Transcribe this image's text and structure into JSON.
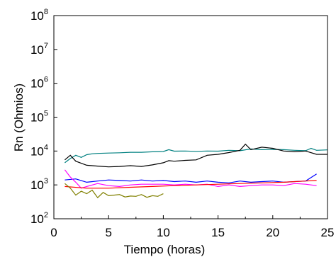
{
  "chart_data": {
    "type": "line",
    "title": "",
    "xlabel": "Tiempo (horas)",
    "ylabel": "Rn (Ohmios)",
    "xlim": [
      0,
      25
    ],
    "ylim": [
      100,
      100000000
    ],
    "yscale": "log",
    "grid": false,
    "x_ticks": [
      {
        "value": 0,
        "label": "0"
      },
      {
        "value": 5,
        "label": "5"
      },
      {
        "value": 10,
        "label": "10"
      },
      {
        "value": 15,
        "label": "15"
      },
      {
        "value": 20,
        "label": "20"
      },
      {
        "value": 25,
        "label": "25"
      }
    ],
    "y_ticks": [
      {
        "value": 100,
        "base": "10",
        "exp": "2"
      },
      {
        "value": 1000,
        "base": "10",
        "exp": "3"
      },
      {
        "value": 10000,
        "base": "10",
        "exp": "4"
      },
      {
        "value": 100000,
        "base": "10",
        "exp": "5"
      },
      {
        "value": 1000000,
        "base": "10",
        "exp": "6"
      },
      {
        "value": 10000000,
        "base": "10",
        "exp": "7"
      },
      {
        "value": 100000000,
        "base": "10",
        "exp": "8"
      }
    ],
    "series": [
      {
        "color": "#008080",
        "x": [
          1,
          1.5,
          2,
          2.5,
          3,
          3.5,
          4,
          5,
          6,
          7,
          8,
          9,
          10,
          10.5,
          11,
          12,
          13,
          14,
          15,
          16,
          17,
          18,
          19,
          20,
          21,
          22,
          23,
          23.5,
          24,
          25
        ],
        "y": [
          4500,
          6000,
          7500,
          6500,
          7800,
          8300,
          8500,
          8700,
          8900,
          9200,
          9200,
          9500,
          9700,
          11000,
          9900,
          10000,
          9800,
          10000,
          9900,
          10500,
          10200,
          11500,
          11000,
          11200,
          11000,
          10500,
          10200,
          12000,
          10500,
          10800
        ]
      },
      {
        "color": "#000000",
        "x": [
          1,
          1.5,
          2,
          3,
          4,
          5,
          6,
          7,
          8,
          9,
          10,
          10.5,
          11,
          12,
          13,
          14,
          15,
          16,
          17,
          17.5,
          18,
          19,
          20,
          21,
          22,
          23,
          24,
          25
        ],
        "y": [
          5500,
          7500,
          5000,
          3800,
          3600,
          3400,
          3500,
          3700,
          3500,
          3900,
          4500,
          5200,
          5000,
          5300,
          5500,
          7500,
          8000,
          9000,
          10500,
          16000,
          11000,
          13000,
          12000,
          10000,
          9500,
          10000,
          8000,
          8000
        ]
      },
      {
        "color": "#0000ff",
        "x": [
          1,
          2,
          3,
          4,
          5,
          6,
          7,
          8,
          9,
          10,
          11,
          12,
          13,
          14,
          15,
          16,
          17,
          18,
          19,
          20,
          21,
          22,
          23,
          24
        ],
        "y": [
          1400,
          1500,
          1200,
          1300,
          1400,
          1350,
          1300,
          1400,
          1300,
          1350,
          1250,
          1300,
          1200,
          1300,
          1200,
          1150,
          1300,
          1200,
          1250,
          1300,
          1200,
          1250,
          1300,
          2100
        ]
      },
      {
        "color": "#ff00ff",
        "x": [
          1,
          1.5,
          2,
          2.5,
          3,
          4,
          5,
          6,
          7,
          8,
          9,
          10,
          11,
          12,
          13,
          14,
          15,
          16,
          17,
          18,
          19,
          20,
          21,
          22,
          23,
          24
        ],
        "y": [
          2800,
          1700,
          1200,
          800,
          900,
          1100,
          950,
          900,
          1000,
          1050,
          1050,
          1050,
          1000,
          1050,
          1000,
          1050,
          900,
          1000,
          900,
          950,
          1000,
          1000,
          950,
          1100,
          1050,
          950
        ]
      },
      {
        "color": "#ff0000",
        "x": [
          1,
          3,
          5,
          7,
          9,
          11,
          13,
          15,
          17,
          19,
          21,
          23,
          24
        ],
        "y": [
          900,
          800,
          800,
          850,
          900,
          950,
          1000,
          1050,
          1100,
          1150,
          1200,
          1300,
          1350
        ]
      },
      {
        "color": "#808000",
        "x": [
          1,
          1.5,
          2,
          2.5,
          3,
          3.5,
          4,
          4.5,
          5,
          5.5,
          6,
          6.5,
          7,
          7.5,
          8,
          8.5,
          9,
          9.5,
          10
        ],
        "y": [
          1100,
          800,
          500,
          650,
          550,
          700,
          420,
          600,
          480,
          500,
          520,
          440,
          470,
          460,
          520,
          430,
          480,
          460,
          550
        ]
      }
    ]
  }
}
